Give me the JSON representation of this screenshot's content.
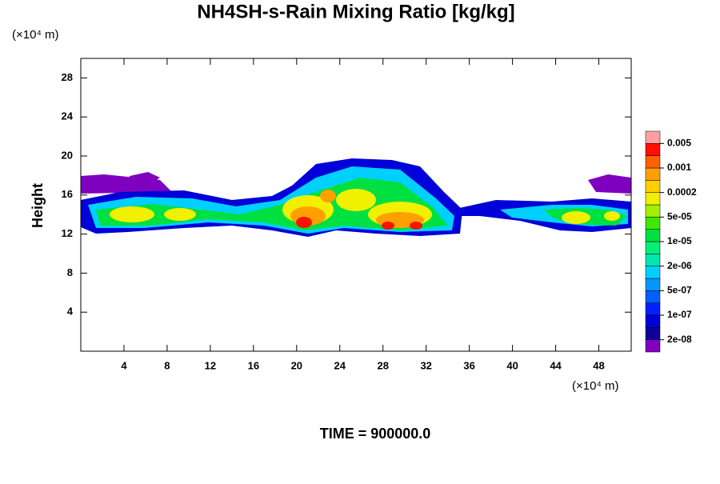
{
  "chart_data": {
    "type": "contour",
    "title": "NH4SH-s-Rain Mixing Ratio [kg/kg]",
    "y_unit_label": "(×10⁴ m)",
    "x_unit_label": "(×10⁴ m)",
    "ylabel": "Height",
    "footer": "TIME = 900000.0",
    "xlim": [
      0,
      51
    ],
    "xticks": [
      4,
      8,
      12,
      16,
      20,
      24,
      28,
      32,
      36,
      40,
      44,
      48
    ],
    "ylim": [
      0,
      30
    ],
    "yticks": [
      4,
      8,
      12,
      16,
      20,
      24,
      28
    ],
    "colorbar": {
      "colors": [
        "#8000c0",
        "#10009c",
        "#0000d8",
        "#0020ff",
        "#0060ff",
        "#0098ff",
        "#00d0ff",
        "#00e8b0",
        "#00f078",
        "#00e040",
        "#40e800",
        "#a0f000",
        "#f0f000",
        "#ffd000",
        "#ffa000",
        "#ff6000",
        "#ff1000",
        "#ffa0a0"
      ],
      "ticks": [
        {
          "value": 2e-08,
          "label": "2e-08"
        },
        {
          "value": 1e-07,
          "label": "1e-07"
        },
        {
          "value": 5e-07,
          "label": "5e-07"
        },
        {
          "value": 2e-06,
          "label": "2e-06"
        },
        {
          "value": 1e-05,
          "label": "1e-05"
        },
        {
          "value": 5e-05,
          "label": "5e-05"
        },
        0.0002,
        0.001,
        0.005
      ]
    }
  }
}
